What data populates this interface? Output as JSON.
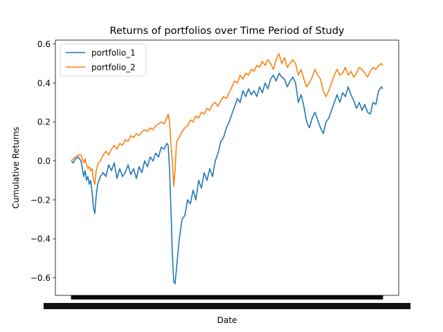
{
  "chart_data": {
    "type": "line",
    "title": "Returns of portfolios over Time Period of Study",
    "xlabel": "Date",
    "ylabel": "Cumulative Returns",
    "ylim": [
      -0.69,
      0.62
    ],
    "yticks": [
      -0.6,
      -0.4,
      -0.2,
      0.0,
      0.2,
      0.4,
      0.6
    ],
    "ytick_labels": [
      "−0.6",
      "−0.4",
      "−0.2",
      "0.0",
      "0.2",
      "0.4",
      "0.6"
    ],
    "grid": false,
    "legend": "top-left",
    "x": [
      0,
      3,
      6,
      10,
      14,
      18,
      20,
      22,
      24,
      26,
      28,
      30,
      32,
      34,
      36,
      38,
      42,
      46,
      50,
      54,
      58,
      62,
      66,
      70,
      74,
      78,
      82,
      86,
      90,
      94,
      98,
      102,
      106,
      110,
      114,
      118,
      122,
      126,
      130,
      134,
      138,
      140,
      142,
      144,
      146,
      148,
      150,
      152,
      156,
      160,
      164,
      168,
      172,
      176,
      180,
      184,
      188,
      192,
      196,
      200,
      204,
      208,
      212,
      216,
      220,
      224,
      228,
      232,
      236,
      240,
      244,
      248,
      252,
      256,
      260,
      264,
      268,
      272,
      276,
      280,
      284,
      288,
      292,
      296,
      300,
      304,
      308,
      312,
      316,
      320,
      324,
      328,
      332,
      336,
      340,
      344,
      348,
      352,
      356,
      360,
      364,
      368,
      372,
      376,
      380,
      384,
      388,
      392,
      396,
      400,
      404,
      408,
      412,
      416,
      420,
      424,
      428,
      432,
      436,
      440,
      444,
      448,
      450
    ],
    "series": [
      {
        "name": "portfolio_1",
        "color": "#1f77b4",
        "values": [
          0.0,
          -0.01,
          0.01,
          0.02,
          0.0,
          -0.08,
          -0.05,
          -0.1,
          -0.08,
          -0.12,
          -0.1,
          -0.16,
          -0.24,
          -0.27,
          -0.18,
          -0.12,
          -0.08,
          -0.06,
          -0.08,
          -0.02,
          -0.05,
          -0.01,
          -0.09,
          -0.04,
          -0.08,
          -0.06,
          -0.02,
          -0.07,
          -0.04,
          -0.09,
          -0.03,
          -0.06,
          0.0,
          -0.03,
          0.02,
          0.0,
          0.04,
          0.02,
          0.07,
          0.06,
          0.09,
          0.08,
          -0.05,
          -0.25,
          -0.48,
          -0.62,
          -0.63,
          -0.55,
          -0.4,
          -0.3,
          -0.28,
          -0.2,
          -0.22,
          -0.15,
          -0.2,
          -0.1,
          -0.14,
          -0.06,
          -0.1,
          -0.04,
          -0.08,
          0.0,
          0.04,
          0.1,
          0.12,
          0.17,
          0.2,
          0.24,
          0.28,
          0.32,
          0.3,
          0.36,
          0.33,
          0.37,
          0.34,
          0.36,
          0.33,
          0.38,
          0.35,
          0.4,
          0.37,
          0.42,
          0.44,
          0.41,
          0.45,
          0.43,
          0.42,
          0.38,
          0.41,
          0.43,
          0.4,
          0.3,
          0.34,
          0.28,
          0.2,
          0.17,
          0.22,
          0.25,
          0.21,
          0.17,
          0.14,
          0.2,
          0.22,
          0.26,
          0.3,
          0.34,
          0.3,
          0.35,
          0.33,
          0.38,
          0.34,
          0.31,
          0.27,
          0.3,
          0.26,
          0.29,
          0.25,
          0.24,
          0.3,
          0.29,
          0.36,
          0.38,
          0.37
        ]
      },
      {
        "name": "portfolio_2",
        "color": "#ff7f0e",
        "values": [
          0.0,
          0.01,
          0.02,
          0.03,
          0.03,
          -0.01,
          0.01,
          -0.02,
          -0.04,
          -0.03,
          -0.05,
          -0.04,
          -0.1,
          -0.12,
          -0.05,
          -0.02,
          0.0,
          0.03,
          0.05,
          0.03,
          0.06,
          0.08,
          0.06,
          0.09,
          0.08,
          0.11,
          0.1,
          0.13,
          0.12,
          0.14,
          0.13,
          0.15,
          0.16,
          0.15,
          0.17,
          0.16,
          0.18,
          0.19,
          0.2,
          0.19,
          0.22,
          0.24,
          0.2,
          0.08,
          0.0,
          -0.13,
          -0.05,
          0.1,
          0.12,
          0.15,
          0.17,
          0.18,
          0.21,
          0.2,
          0.23,
          0.22,
          0.25,
          0.24,
          0.27,
          0.26,
          0.29,
          0.3,
          0.28,
          0.31,
          0.33,
          0.32,
          0.35,
          0.38,
          0.41,
          0.4,
          0.44,
          0.42,
          0.45,
          0.44,
          0.47,
          0.46,
          0.49,
          0.48,
          0.51,
          0.49,
          0.52,
          0.5,
          0.47,
          0.52,
          0.55,
          0.5,
          0.53,
          0.48,
          0.5,
          0.52,
          0.5,
          0.44,
          0.47,
          0.42,
          0.38,
          0.4,
          0.43,
          0.47,
          0.44,
          0.42,
          0.36,
          0.33,
          0.36,
          0.4,
          0.44,
          0.47,
          0.44,
          0.45,
          0.48,
          0.44,
          0.46,
          0.43,
          0.45,
          0.48,
          0.47,
          0.45,
          0.43,
          0.46,
          0.48,
          0.47,
          0.49,
          0.5,
          0.49
        ]
      }
    ]
  }
}
